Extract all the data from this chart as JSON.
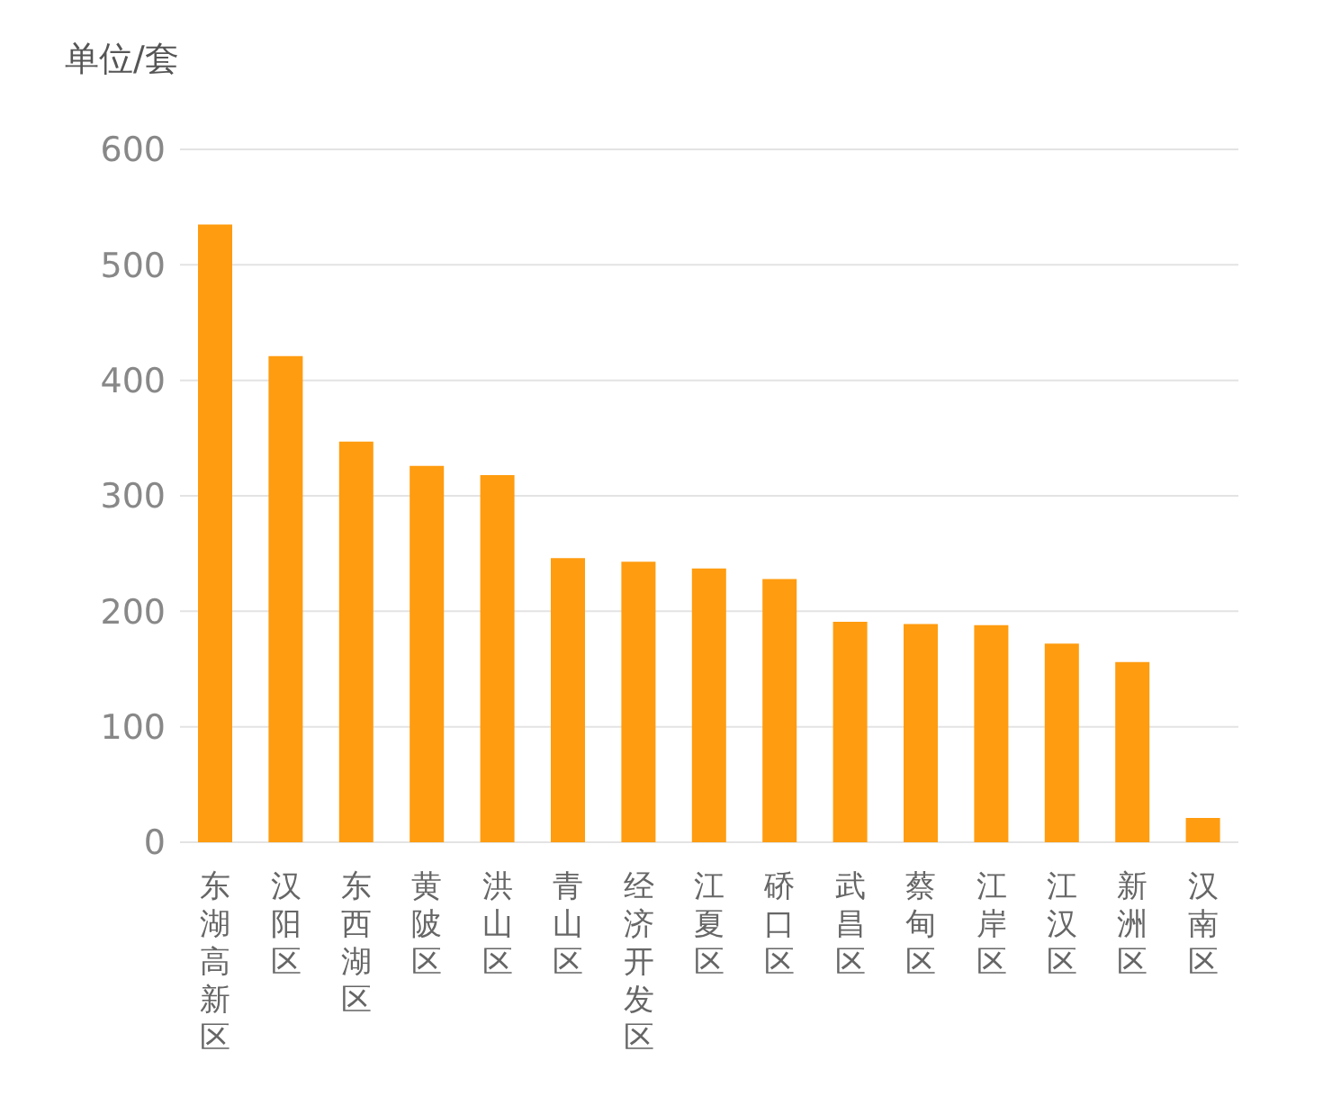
{
  "chart_data": {
    "type": "bar",
    "ylabel": "单位/套",
    "categories": [
      "东湖高新区",
      "汉阳区",
      "东西湖区",
      "黄陂区",
      "洪山区",
      "青山区",
      "经济开发区",
      "江夏区",
      "硚口区",
      "武昌区",
      "蔡甸区",
      "江岸区",
      "江汉区",
      "新洲区",
      "汉南区"
    ],
    "values": [
      535,
      421,
      347,
      326,
      318,
      246,
      243,
      237,
      228,
      191,
      189,
      188,
      172,
      156,
      21
    ],
    "color": "#ff9c0f",
    "ylim": [
      0,
      600
    ],
    "yticks": [
      0,
      100,
      200,
      300,
      400,
      500,
      600
    ],
    "grid": "y"
  }
}
